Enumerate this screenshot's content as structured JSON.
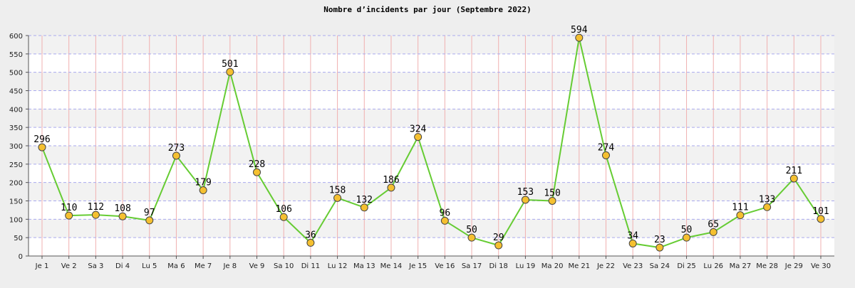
{
  "colors": {
    "background": "#eeeeee",
    "plot_band_light": "#ffffff",
    "plot_band_dark": "#f2f2f2",
    "horizontal_grid": "#aaaaee",
    "vertical_grid": "#f0b0b0",
    "line": "#66cc33",
    "marker_fill": "#f5c030",
    "marker_stroke": "#444444"
  },
  "chart_data": {
    "type": "line",
    "title": "Nombre d’incidents par jour (Septembre 2022)",
    "xlabel": "",
    "ylabel": "",
    "ylim": [
      0,
      600
    ],
    "yticks": [
      0,
      50,
      100,
      150,
      200,
      250,
      300,
      350,
      400,
      450,
      500,
      550,
      600
    ],
    "grid": true,
    "legend": "none",
    "categories": [
      "Je 1",
      "Ve 2",
      "Sa 3",
      "Di 4",
      "Lu 5",
      "Ma 6",
      "Me 7",
      "Je 8",
      "Ve 9",
      "Sa 10",
      "Di 11",
      "Lu 12",
      "Ma 13",
      "Me 14",
      "Je 15",
      "Ve 16",
      "Sa 17",
      "Di 18",
      "Lu 19",
      "Ma 20",
      "Me 21",
      "Je 22",
      "Ve 23",
      "Sa 24",
      "Di 25",
      "Lu 26",
      "Ma 27",
      "Me 28",
      "Je 29",
      "Ve 30"
    ],
    "series": [
      {
        "values": [
          296,
          110,
          112,
          108,
          97,
          273,
          179,
          501,
          228,
          106,
          36,
          158,
          132,
          186,
          324,
          96,
          50,
          29,
          153,
          150,
          594,
          274,
          34,
          23,
          50,
          65,
          111,
          133,
          211,
          101
        ],
        "color": "#66cc33",
        "data_labels": true
      }
    ]
  }
}
